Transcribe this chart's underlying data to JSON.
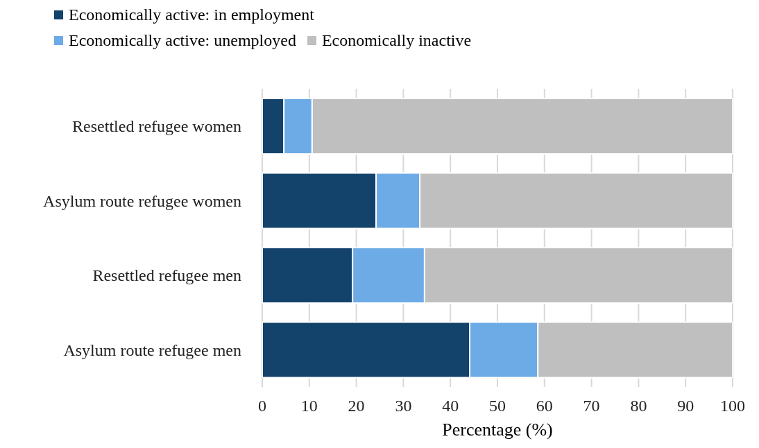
{
  "chart_data": {
    "type": "bar",
    "orientation": "horizontal",
    "stacked": true,
    "xlabel": "Percentage (%)",
    "categories": [
      "Resettled refugee women",
      "Asylum route refugee women",
      "Resettled refugee men",
      "Asylum route refugee men"
    ],
    "series": [
      {
        "name": "Economically active: in employment",
        "color": "#13426b",
        "values": [
          4.6,
          24.2,
          19.2,
          44.1
        ]
      },
      {
        "name": "Economically active: unemployed",
        "color": "#6cabe6",
        "values": [
          6.0,
          9.3,
          15.3,
          14.5
        ]
      },
      {
        "name": "Economically inactive",
        "color": "#bfbfbf",
        "values": [
          89.4,
          66.5,
          65.5,
          41.4
        ]
      }
    ],
    "xlim": [
      0,
      100
    ],
    "xticks": [
      0,
      10,
      20,
      30,
      40,
      50,
      60,
      70,
      80,
      90,
      100
    ],
    "grid": "x",
    "legend": "top left"
  }
}
